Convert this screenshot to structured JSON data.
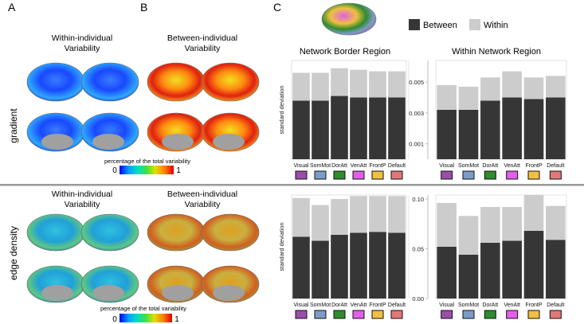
{
  "panel_labels": {
    "a": "A",
    "b": "B",
    "c": "C"
  },
  "rows": {
    "gradient": "gradient",
    "edge_density": "edge density"
  },
  "brain_titles": {
    "within": [
      "Within-individual",
      "Variability"
    ],
    "between": [
      "Between-individual",
      "Variability"
    ]
  },
  "colorbar": {
    "label": "percentage of the total variability",
    "min": "0",
    "max": "1",
    "stops": [
      "#0000ff",
      "#00a0ff",
      "#00e0c0",
      "#40e040",
      "#e0e000",
      "#ff8000",
      "#e00000"
    ]
  },
  "legend": {
    "between": "Between",
    "within": "Within",
    "between_color": "#363636",
    "within_color": "#cccccc"
  },
  "section_titles": {
    "border": "Network Border Region",
    "within": "Within Network Region"
  },
  "ylabel": "standard deviation",
  "network_colors": [
    "#9b4fa8",
    "#7c9cc8",
    "#2e8b2e",
    "#e060e8",
    "#f0c040",
    "#e07878"
  ],
  "chart_data": [
    {
      "type": "bar",
      "stacked": true,
      "title": "Network Border Region",
      "row": "gradient",
      "ylabel": "standard deviation",
      "categories": [
        "Visual",
        "SomMot",
        "DorAtt",
        "VenAtt",
        "FrontP",
        "Default"
      ],
      "series": [
        {
          "name": "Between",
          "values": [
            0.0038,
            0.0038,
            0.0041,
            0.004,
            0.004,
            0.004
          ]
        },
        {
          "name": "Within",
          "values": [
            0.0018,
            0.0018,
            0.0018,
            0.0018,
            0.0017,
            0.0017
          ]
        }
      ],
      "ylim": [
        0,
        0.0064
      ],
      "yticks": [],
      "ytick_labels": []
    },
    {
      "type": "bar",
      "stacked": true,
      "title": "Within Network Region",
      "row": "gradient",
      "ylabel": "",
      "categories": [
        "Visual",
        "SomMot",
        "DorAtt",
        "VenAtt",
        "FrontP",
        "Default"
      ],
      "series": [
        {
          "name": "Between",
          "values": [
            0.0032,
            0.0032,
            0.0038,
            0.004,
            0.0039,
            0.004
          ]
        },
        {
          "name": "Within",
          "values": [
            0.0016,
            0.0015,
            0.0015,
            0.0017,
            0.0014,
            0.0014
          ]
        }
      ],
      "ylim": [
        0,
        0.0064
      ],
      "yticks": [
        0.001,
        0.003,
        0.005
      ],
      "ytick_labels": [
        "0.001",
        "0.003",
        "0.005"
      ]
    },
    {
      "type": "bar",
      "stacked": true,
      "title": "",
      "row": "edge density",
      "ylabel": "standard deviation",
      "categories": [
        "Visual",
        "SomMot",
        "DorAtt",
        "VenAtt",
        "FrontP",
        "Default"
      ],
      "series": [
        {
          "name": "Between",
          "values": [
            0.062,
            0.058,
            0.064,
            0.066,
            0.067,
            0.066
          ]
        },
        {
          "name": "Within",
          "values": [
            0.039,
            0.036,
            0.036,
            0.037,
            0.036,
            0.037
          ]
        }
      ],
      "ylim": [
        0,
        0.104
      ],
      "yticks": [],
      "ytick_labels": []
    },
    {
      "type": "bar",
      "stacked": true,
      "title": "",
      "row": "edge density",
      "ylabel": "",
      "categories": [
        "Visual",
        "SomMot",
        "DorAtt",
        "VenAtt",
        "FrontP",
        "Default"
      ],
      "series": [
        {
          "name": "Between",
          "values": [
            0.052,
            0.044,
            0.056,
            0.058,
            0.068,
            0.059
          ]
        },
        {
          "name": "Within",
          "values": [
            0.044,
            0.039,
            0.036,
            0.034,
            0.036,
            0.034
          ]
        }
      ],
      "ylim": [
        0,
        0.104
      ],
      "yticks": [
        0.0,
        0.05,
        0.1
      ],
      "ytick_labels": [
        "0.00",
        "0.05",
        "0.10"
      ]
    }
  ]
}
